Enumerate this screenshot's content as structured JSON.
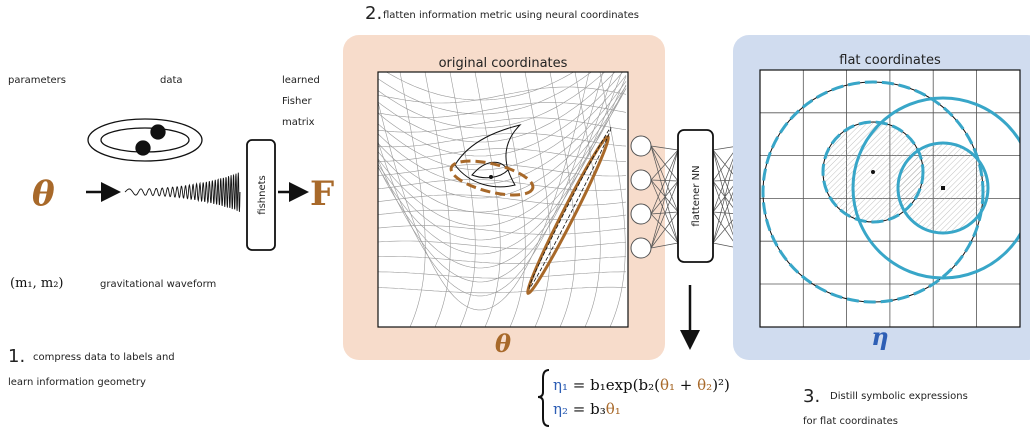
{
  "step2": {
    "number": "2.",
    "text": "flatten information metric using neural coordinates"
  },
  "left": {
    "parameters": "parameters",
    "data": "data",
    "learned": [
      "learned",
      "Fisher",
      "matrix"
    ],
    "theta": "θ",
    "fisher": "F",
    "fishnets": "fishnets",
    "masses": "(m₁, m₂)",
    "waveform": "gravitational waveform"
  },
  "step1": {
    "number": "1.",
    "lines": [
      "compress data to labels and",
      "learn information geometry"
    ]
  },
  "original": {
    "title": "original coordinates",
    "axis": "θ"
  },
  "flattener": "flattener NN",
  "flat": {
    "title": "flat coordinates",
    "axis": "η"
  },
  "equations": [
    [
      "η₁",
      " = b₁exp(b₂(",
      "θ₁",
      " + ",
      "θ₂",
      ")²)"
    ],
    [
      "η₂",
      " = b₃",
      "θ₁"
    ]
  ],
  "step3": {
    "number": "3.",
    "lines": [
      "Distill symbolic expressions",
      "for flat coordinates"
    ]
  }
}
